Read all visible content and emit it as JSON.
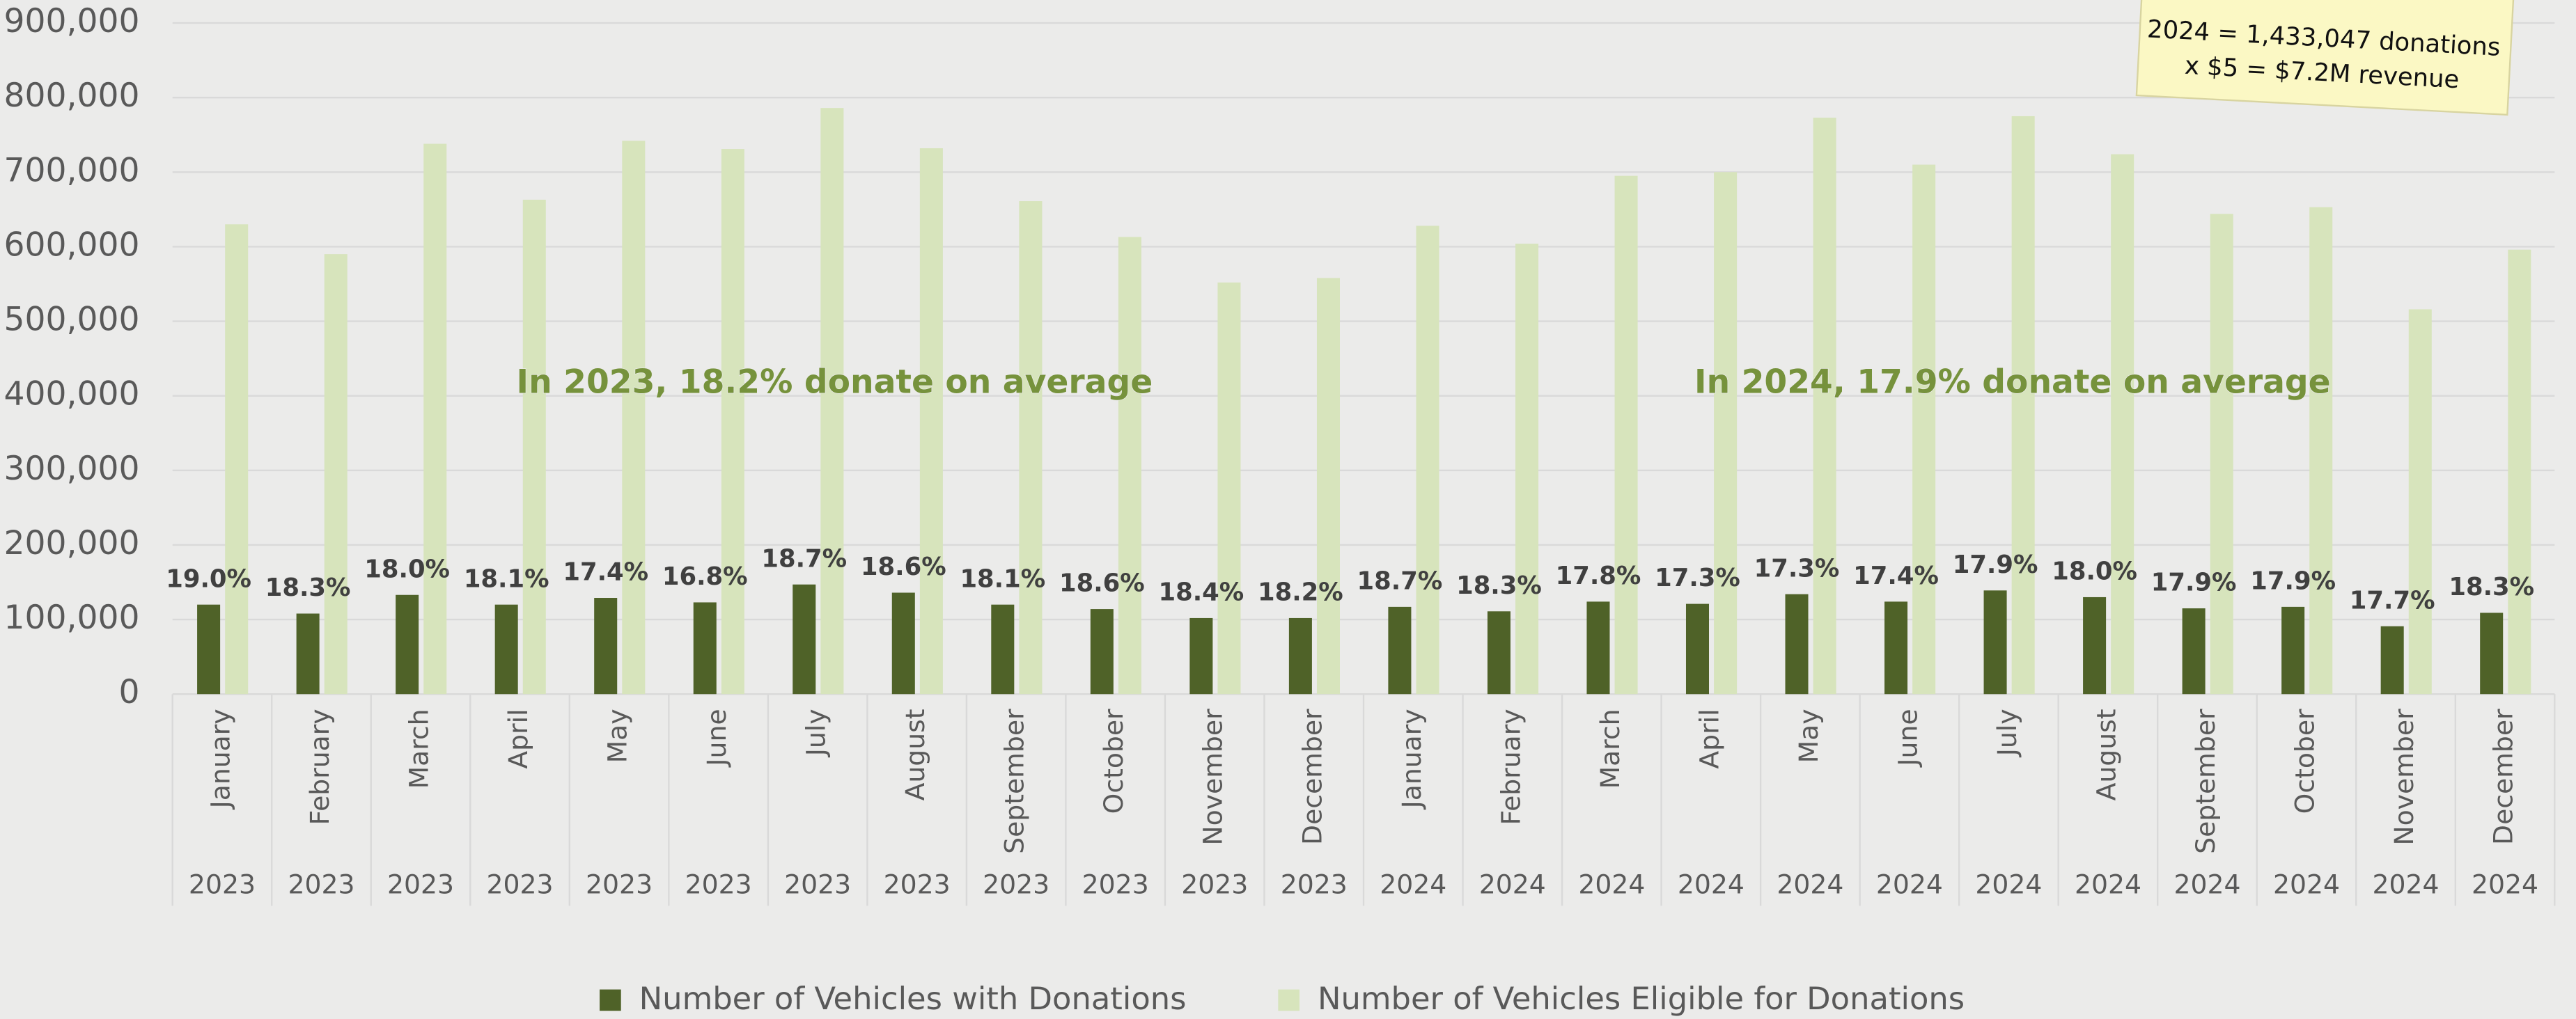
{
  "chart_data": {
    "type": "bar",
    "categories": [
      "January",
      "February",
      "March",
      "April",
      "May",
      "June",
      "July",
      "August",
      "September",
      "October",
      "November",
      "December",
      "January",
      "February",
      "March",
      "April",
      "May",
      "June",
      "July",
      "August",
      "September",
      "October",
      "November",
      "December"
    ],
    "category_groups": [
      "2023",
      "2023",
      "2023",
      "2023",
      "2023",
      "2023",
      "2023",
      "2023",
      "2023",
      "2023",
      "2023",
      "2023",
      "2024",
      "2024",
      "2024",
      "2024",
      "2024",
      "2024",
      "2024",
      "2024",
      "2024",
      "2024",
      "2024",
      "2024"
    ],
    "series": [
      {
        "name": "Number of Vehicles with Donations",
        "color": "#4f6228",
        "values": [
          120000,
          108000,
          133000,
          120000,
          129000,
          123000,
          147000,
          136000,
          120000,
          114000,
          102000,
          102000,
          117000,
          111000,
          124000,
          121000,
          134000,
          124000,
          139000,
          130000,
          115000,
          117000,
          91000,
          109000
        ]
      },
      {
        "name": "Number of Vehicles Eligible for Donations",
        "color": "#d7e4bc",
        "values": [
          630000,
          590000,
          738000,
          663000,
          742000,
          731000,
          786000,
          732000,
          661000,
          613000,
          552000,
          558000,
          628000,
          604000,
          695000,
          700000,
          773000,
          710000,
          775000,
          724000,
          644000,
          653000,
          516000,
          596000
        ]
      }
    ],
    "data_labels": [
      "19.0%",
      "18.3%",
      "18.0%",
      "18.1%",
      "17.4%",
      "16.8%",
      "18.7%",
      "18.6%",
      "18.1%",
      "18.6%",
      "18.4%",
      "18.2%",
      "18.7%",
      "18.3%",
      "17.8%",
      "17.3%",
      "17.3%",
      "17.4%",
      "17.9%",
      "18.0%",
      "17.9%",
      "17.9%",
      "17.7%",
      "18.3%"
    ],
    "annotations": [
      "In 2023, 18.2% donate on average",
      "In 2024, 17.9% donate on average"
    ],
    "note": [
      "2024 = 1,433,047 donations",
      "x $5 = $7.2M revenue"
    ],
    "ylim": [
      0,
      900000
    ],
    "yticks": [
      0,
      {
        "value": 100000,
        "label": "100,000"
      },
      {
        "value": 200000,
        "label": "200,000"
      },
      {
        "value": 300000,
        "label": "300,000"
      },
      {
        "value": 400000,
        "label": "400,000"
      },
      {
        "value": 500000,
        "label": "500,000"
      },
      {
        "value": 600000,
        "label": "600,000"
      },
      {
        "value": 700000,
        "label": "700,000"
      },
      {
        "value": 800000,
        "label": "800,000"
      },
      {
        "value": 900000,
        "label": "900,000"
      }
    ],
    "grid": true,
    "legend": "bottom"
  }
}
